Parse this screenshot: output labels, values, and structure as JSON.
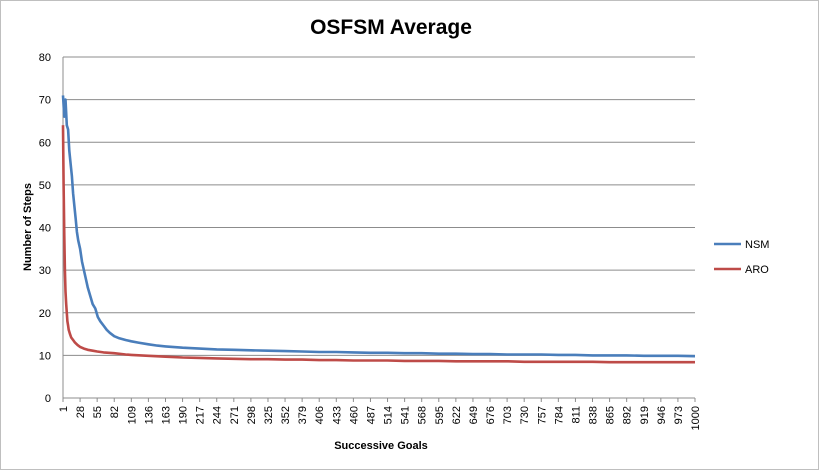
{
  "chart_data": {
    "type": "line",
    "title": "OSFSM Average",
    "xlabel": "Successive Goals",
    "ylabel": "Number of Steps",
    "xlim": [
      1,
      1000
    ],
    "ylim": [
      0,
      80
    ],
    "yticks": [
      0,
      10,
      20,
      30,
      40,
      50,
      60,
      70,
      80
    ],
    "xtick_labels": [
      "1",
      "28",
      "55",
      "82",
      "109",
      "136",
      "163",
      "190",
      "217",
      "244",
      "271",
      "298",
      "325",
      "352",
      "379",
      "406",
      "433",
      "460",
      "487",
      "514",
      "541",
      "568",
      "595",
      "622",
      "649",
      "676",
      "703",
      "730",
      "757",
      "784",
      "811",
      "838",
      "865",
      "892",
      "919",
      "946",
      "973",
      "1000"
    ],
    "grid": "horizontal",
    "legend_position": "right",
    "series": [
      {
        "name": "NSM",
        "color": "#4a7ebb",
        "points": [
          [
            1,
            71
          ],
          [
            3,
            66
          ],
          [
            5,
            70
          ],
          [
            7,
            64
          ],
          [
            9,
            63
          ],
          [
            11,
            58
          ],
          [
            13,
            55
          ],
          [
            15,
            52
          ],
          [
            17,
            48
          ],
          [
            19,
            45
          ],
          [
            21,
            42
          ],
          [
            23,
            39
          ],
          [
            25,
            37
          ],
          [
            28,
            35
          ],
          [
            31,
            32
          ],
          [
            34,
            30
          ],
          [
            37,
            28
          ],
          [
            40,
            26
          ],
          [
            44,
            24
          ],
          [
            48,
            22
          ],
          [
            52,
            21
          ],
          [
            56,
            19
          ],
          [
            60,
            18
          ],
          [
            65,
            17
          ],
          [
            70,
            16
          ],
          [
            75,
            15.3
          ],
          [
            82,
            14.5
          ],
          [
            90,
            14
          ],
          [
            100,
            13.6
          ],
          [
            109,
            13.3
          ],
          [
            120,
            13
          ],
          [
            136,
            12.6
          ],
          [
            150,
            12.3
          ],
          [
            163,
            12.1
          ],
          [
            190,
            11.8
          ],
          [
            217,
            11.6
          ],
          [
            244,
            11.4
          ],
          [
            271,
            11.3
          ],
          [
            298,
            11.2
          ],
          [
            325,
            11.1
          ],
          [
            352,
            11
          ],
          [
            379,
            10.9
          ],
          [
            406,
            10.8
          ],
          [
            433,
            10.8
          ],
          [
            460,
            10.7
          ],
          [
            487,
            10.6
          ],
          [
            514,
            10.6
          ],
          [
            541,
            10.5
          ],
          [
            568,
            10.5
          ],
          [
            595,
            10.4
          ],
          [
            622,
            10.4
          ],
          [
            649,
            10.3
          ],
          [
            676,
            10.3
          ],
          [
            703,
            10.2
          ],
          [
            730,
            10.2
          ],
          [
            757,
            10.2
          ],
          [
            784,
            10.1
          ],
          [
            811,
            10.1
          ],
          [
            838,
            10
          ],
          [
            865,
            10
          ],
          [
            892,
            10
          ],
          [
            919,
            9.9
          ],
          [
            946,
            9.9
          ],
          [
            973,
            9.9
          ],
          [
            1000,
            9.8
          ]
        ]
      },
      {
        "name": "ARO",
        "color": "#be4b48",
        "points": [
          [
            1,
            64
          ],
          [
            2,
            50
          ],
          [
            3,
            38
          ],
          [
            4,
            30
          ],
          [
            5,
            25
          ],
          [
            6,
            22
          ],
          [
            7,
            20
          ],
          [
            8,
            18
          ],
          [
            9,
            17
          ],
          [
            10,
            16
          ],
          [
            12,
            15
          ],
          [
            14,
            14.2
          ],
          [
            17,
            13.6
          ],
          [
            20,
            13
          ],
          [
            24,
            12.4
          ],
          [
            28,
            12
          ],
          [
            34,
            11.6
          ],
          [
            40,
            11.3
          ],
          [
            48,
            11.1
          ],
          [
            55,
            10.9
          ],
          [
            65,
            10.7
          ],
          [
            82,
            10.5
          ],
          [
            100,
            10.2
          ],
          [
            109,
            10.1
          ],
          [
            136,
            9.9
          ],
          [
            163,
            9.7
          ],
          [
            190,
            9.5
          ],
          [
            217,
            9.4
          ],
          [
            244,
            9.3
          ],
          [
            271,
            9.2
          ],
          [
            298,
            9.1
          ],
          [
            325,
            9.1
          ],
          [
            352,
            9
          ],
          [
            379,
            9
          ],
          [
            406,
            8.9
          ],
          [
            433,
            8.9
          ],
          [
            460,
            8.8
          ],
          [
            487,
            8.8
          ],
          [
            514,
            8.8
          ],
          [
            541,
            8.7
          ],
          [
            568,
            8.7
          ],
          [
            595,
            8.7
          ],
          [
            622,
            8.6
          ],
          [
            649,
            8.6
          ],
          [
            676,
            8.6
          ],
          [
            703,
            8.6
          ],
          [
            730,
            8.5
          ],
          [
            757,
            8.5
          ],
          [
            784,
            8.5
          ],
          [
            811,
            8.5
          ],
          [
            838,
            8.5
          ],
          [
            865,
            8.4
          ],
          [
            892,
            8.4
          ],
          [
            919,
            8.4
          ],
          [
            946,
            8.4
          ],
          [
            973,
            8.4
          ],
          [
            1000,
            8.4
          ]
        ]
      }
    ]
  }
}
